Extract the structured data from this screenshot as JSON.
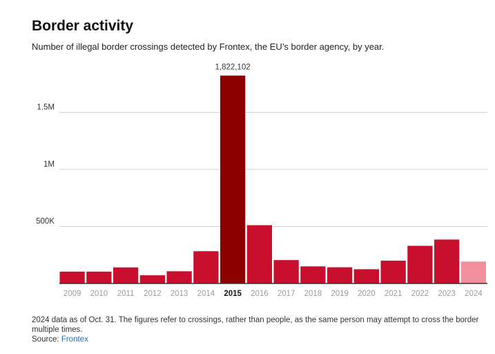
{
  "header": {
    "title": "Border activity",
    "subtitle": "Number of illegal border crossings detected by Frontex, the EU’s border agency, by year."
  },
  "footer": {
    "note": "2024 data as of Oct. 31. The figures refer to crossings, rather than people, as the same person may attempt to cross the border multiple times.",
    "source_prefix": "Source: ",
    "source_name": "Frontex"
  },
  "colors": {
    "bar": "#c8102e",
    "highlight": "#8b0000",
    "partial": "#f0909e",
    "link": "#1f6fb5"
  },
  "chart_data": {
    "type": "bar",
    "title": "Border activity",
    "xlabel": "",
    "ylabel": "",
    "categories": [
      "2009",
      "2010",
      "2011",
      "2012",
      "2013",
      "2014",
      "2015",
      "2016",
      "2017",
      "2018",
      "2019",
      "2020",
      "2021",
      "2022",
      "2023",
      "2024"
    ],
    "values": [
      104000,
      104000,
      141000,
      72000,
      107000,
      283000,
      1822102,
      511000,
      205000,
      150000,
      142000,
      125000,
      200000,
      330000,
      385000,
      192000
    ],
    "ylim": [
      0,
      1950000
    ],
    "yticks": [
      500000,
      1000000,
      1500000
    ],
    "ytick_labels": [
      "500K",
      "1M",
      "1.5M"
    ],
    "highlight_category": "2015",
    "partial_category": "2024",
    "data_labels": [
      {
        "category": "2015",
        "text": "1,822,102"
      }
    ],
    "grid": true
  }
}
